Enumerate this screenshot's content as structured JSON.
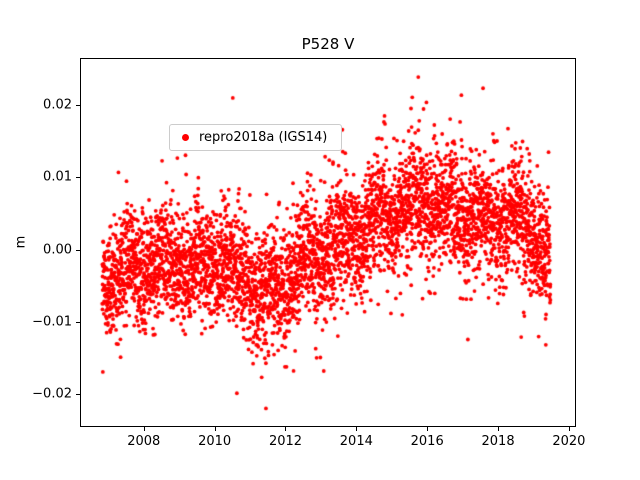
{
  "figure": {
    "title": "P528 V",
    "ylabel": "m",
    "background": "#ffffff"
  },
  "legend": {
    "label": "repro2018a (IGS14)",
    "marker_color": "#ff0000",
    "position": "upper-left"
  },
  "chart_data": {
    "type": "scatter",
    "title": "P528 V",
    "xlabel": "",
    "ylabel": "m",
    "grid": false,
    "legend_position": "upper-left",
    "series": [
      {
        "name": "repro2018a (IGS14)",
        "color": "#ff0000",
        "marker": "dot",
        "marker_radius_px": 1.9
      }
    ],
    "xlim": [
      2006.2,
      2020.2
    ],
    "ylim": [
      -0.0245,
      0.0265
    ],
    "xticks": {
      "values": [
        2008,
        2010,
        2012,
        2014,
        2016,
        2018,
        2020
      ],
      "labels": [
        "2008",
        "2010",
        "2012",
        "2014",
        "2016",
        "2018",
        "2020"
      ]
    },
    "yticks": {
      "values": [
        -0.02,
        -0.01,
        0.0,
        0.01,
        0.02
      ],
      "labels": [
        "−0.02",
        "−0.01",
        "0.00",
        "0.01",
        "0.02"
      ]
    },
    "data_time_range": [
      2006.8,
      2019.45
    ],
    "samples_per_year": 365,
    "trend_keyframes": [
      [
        2006.8,
        -0.0035
      ],
      [
        2007.5,
        -0.0028
      ],
      [
        2008.5,
        -0.0024
      ],
      [
        2009.5,
        -0.0018
      ],
      [
        2010.3,
        -0.0016
      ],
      [
        2011.0,
        -0.0048
      ],
      [
        2011.6,
        -0.0058
      ],
      [
        2012.3,
        -0.002
      ],
      [
        2013.0,
        0.0002
      ],
      [
        2013.8,
        0.0012
      ],
      [
        2014.5,
        0.004
      ],
      [
        2015.3,
        0.0062
      ],
      [
        2016.0,
        0.0063
      ],
      [
        2016.8,
        0.0052
      ],
      [
        2017.5,
        0.0042
      ],
      [
        2018.3,
        0.005
      ],
      [
        2019.0,
        0.003
      ],
      [
        2019.45,
        -0.0012
      ]
    ],
    "noise": {
      "std": 0.004,
      "outlier_fraction": 0.05,
      "outlier_std": 0.0065,
      "seasonal_amplitude": 0.0014,
      "seasonal_phase": 0.3,
      "seed": 42
    },
    "extreme_points": [
      [
        2011.42,
        -0.0218
      ],
      [
        2015.72,
        0.024
      ],
      [
        2010.6,
        -0.0197
      ],
      [
        2015.55,
        0.0212
      ],
      [
        2016.62,
        0.0182
      ],
      [
        2016.9,
        0.0178
      ],
      [
        2019.32,
        -0.013
      ],
      [
        2008.92,
        0.0128
      ],
      [
        2009.15,
        0.0132
      ],
      [
        2011.3,
        -0.0175
      ],
      [
        2012.85,
        -0.0148
      ],
      [
        2014.75,
        0.0178
      ],
      [
        2015.95,
        0.0205
      ],
      [
        2017.85,
        0.0152
      ],
      [
        2018.6,
        0.0142
      ],
      [
        2007.05,
        -0.0108
      ],
      [
        2013.45,
        -0.0118
      ]
    ],
    "summary": {
      "approx_point_count": 4600,
      "y_min_observed": -0.022,
      "y_max_observed": 0.024
    }
  }
}
